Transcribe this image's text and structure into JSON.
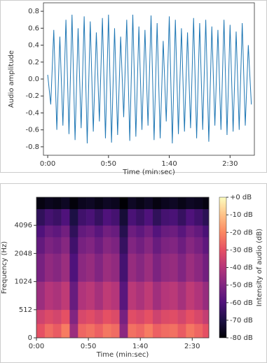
{
  "chart_data": [
    {
      "type": "line",
      "x_label": "Time (min:sec)",
      "y_label": "Audio amplitude",
      "x": [
        0,
        2.5,
        5,
        7.5,
        10,
        12.5,
        15,
        17.5,
        20,
        22.5,
        25,
        27.5,
        30,
        32.5,
        35,
        37.5,
        40,
        42.5,
        45,
        47.5,
        50,
        52.5,
        55,
        57.5,
        60,
        62.5,
        65,
        67.5,
        70,
        72.5,
        75,
        77.5,
        80,
        82.5,
        85,
        87.5,
        90,
        92.5,
        95,
        97.5,
        100,
        102.5,
        105,
        107.5,
        110,
        112.5,
        115,
        117.5,
        120,
        122.5,
        125,
        127.5,
        130,
        132.5,
        135,
        137.5,
        140,
        142.5,
        145,
        147.5,
        150,
        152.5,
        155,
        157.5,
        160,
        162.5,
        165,
        167.5
      ],
      "series": [
        {
          "color": "#1f77b4",
          "values": [
            0.05,
            -0.3,
            0.58,
            -0.6,
            0.5,
            -0.55,
            0.7,
            -0.65,
            0.76,
            -0.72,
            0.6,
            -0.58,
            0.74,
            -0.76,
            0.68,
            -0.62,
            0.55,
            -0.5,
            0.72,
            -0.7,
            0.76,
            -0.75,
            0.6,
            -0.66,
            0.5,
            -0.45,
            0.7,
            -0.73,
            0.76,
            -0.68,
            0.62,
            -0.6,
            0.58,
            -0.55,
            0.75,
            -0.72,
            0.66,
            -0.7,
            0.45,
            -0.5,
            0.74,
            -0.76,
            0.7,
            -0.65,
            0.6,
            -0.62,
            0.55,
            -0.58,
            0.72,
            -0.7,
            0.66,
            -0.6,
            0.7,
            -0.74,
            0.62,
            -0.55,
            0.58,
            -0.6,
            0.7,
            -0.66,
            0.64,
            -0.62,
            0.56,
            -0.6,
            0.66,
            -0.55,
            0.4,
            -0.3
          ]
        }
      ],
      "xlim": [
        -3.5,
        170
      ],
      "xticks": [
        {
          "value": 0,
          "label": "0:00"
        },
        {
          "value": 50,
          "label": "0:50"
        },
        {
          "value": 100,
          "label": "1:40"
        },
        {
          "value": 150,
          "label": "2:30"
        }
      ],
      "ylim": [
        -0.9,
        0.9
      ],
      "yticks": [
        0.8,
        0.6,
        0.4,
        0.2,
        {
          "value": 0,
          "label": "0.0"
        },
        -0.2,
        -0.4,
        -0.6,
        -0.8
      ]
    },
    {
      "type": "heatmap",
      "x_label": "Time (min:sec)",
      "y_label": "Frequency (Hz)",
      "colorbar_label": "Intensity of audio (dB)",
      "colormap": "magma",
      "yscale": "symlog",
      "linthresh": 512,
      "time_edges": [
        0,
        8,
        16,
        24,
        32,
        40,
        48,
        56,
        64,
        72,
        80,
        88,
        96,
        104,
        112,
        120,
        128,
        136,
        144,
        152,
        160,
        166
      ],
      "freq_edges": [
        0,
        256,
        512,
        1024,
        2048,
        3072,
        4096,
        6144,
        8192
      ],
      "z": [
        [
          -30,
          -25,
          -28,
          -22,
          -45,
          -26,
          -24,
          -27,
          -23,
          -25,
          -48,
          -24,
          -26,
          -22,
          -27,
          -25,
          -24,
          -28,
          -23,
          -26,
          -30
        ],
        [
          -35,
          -32,
          -34,
          -30,
          -50,
          -33,
          -31,
          -34,
          -30,
          -32,
          -52,
          -31,
          -33,
          -30,
          -35,
          -32,
          -31,
          -34,
          -30,
          -33,
          -37
        ],
        [
          -45,
          -40,
          -42,
          -38,
          -55,
          -41,
          -39,
          -43,
          -38,
          -40,
          -58,
          -39,
          -42,
          -38,
          -44,
          -40,
          -39,
          -43,
          -38,
          -41,
          -46
        ],
        [
          -52,
          -47,
          -49,
          -45,
          -60,
          -48,
          -46,
          -50,
          -45,
          -47,
          -62,
          -46,
          -49,
          -45,
          -51,
          -47,
          -46,
          -50,
          -45,
          -48,
          -53
        ],
        [
          -56,
          -51,
          -53,
          -49,
          -63,
          -52,
          -50,
          -54,
          -49,
          -51,
          -65,
          -50,
          -53,
          -49,
          -55,
          -51,
          -50,
          -54,
          -49,
          -52,
          -57
        ],
        [
          -60,
          -55,
          -57,
          -53,
          -66,
          -56,
          -54,
          -58,
          -53,
          -55,
          -68,
          -54,
          -57,
          -53,
          -59,
          -55,
          -54,
          -58,
          -53,
          -56,
          -61
        ],
        [
          -66,
          -62,
          -64,
          -60,
          -70,
          -63,
          -61,
          -65,
          -60,
          -62,
          -72,
          -61,
          -64,
          -60,
          -66,
          -62,
          -61,
          -65,
          -60,
          -63,
          -67
        ],
        [
          -78,
          -76,
          -77,
          -75,
          -79,
          -76,
          -75,
          -77,
          -75,
          -76,
          -80,
          -75,
          -77,
          -75,
          -78,
          -76,
          -75,
          -77,
          -75,
          -76,
          -78
        ]
      ],
      "xlim": [
        0,
        166
      ],
      "xticks": [
        {
          "value": 0,
          "label": "0:00"
        },
        {
          "value": 50,
          "label": "0:50"
        },
        {
          "value": 100,
          "label": "1:40"
        },
        {
          "value": 150,
          "label": "2:30"
        }
      ],
      "ylim": [
        0,
        8192
      ],
      "yticks": [
        0,
        512,
        1024,
        2048,
        4096
      ],
      "zlim": [
        -80,
        0
      ],
      "zticks": [
        {
          "value": 0,
          "label": "+0 dB"
        },
        {
          "value": -10,
          "label": "-10 dB"
        },
        {
          "value": -20,
          "label": "-20 dB"
        },
        {
          "value": -30,
          "label": "-30 dB"
        },
        {
          "value": -40,
          "label": "-40 dB"
        },
        {
          "value": -50,
          "label": "-50 dB"
        },
        {
          "value": -60,
          "label": "-60 dB"
        },
        {
          "value": -70,
          "label": "-70 dB"
        },
        {
          "value": -80,
          "label": "-80 dB"
        }
      ]
    }
  ]
}
